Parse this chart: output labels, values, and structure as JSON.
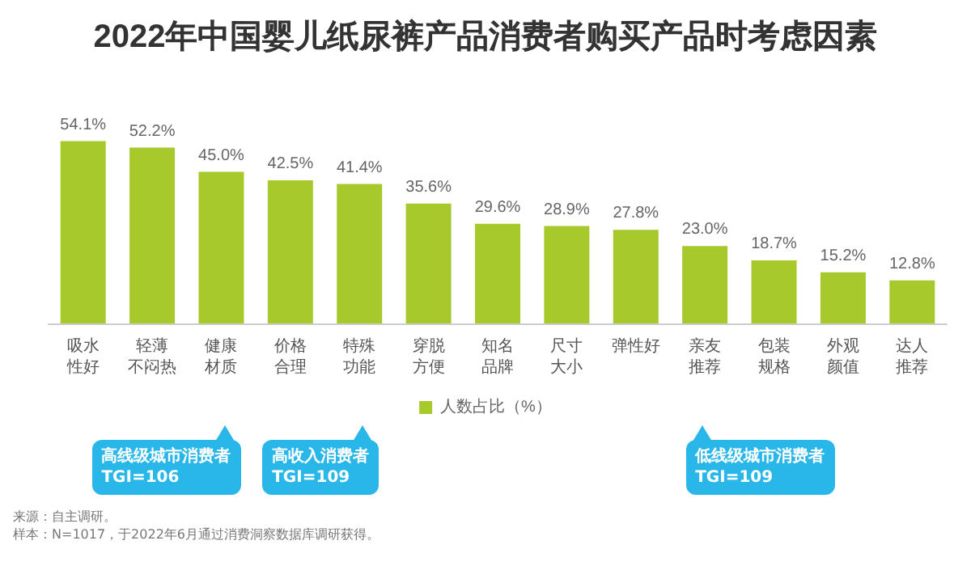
{
  "chart_data": {
    "type": "bar",
    "title": "2022年中国婴儿纸尿裤产品消费者购买产品时考虑因素",
    "categories": [
      "吸水性好",
      "轻薄不闷热",
      "健康材质",
      "价格合理",
      "特殊功能",
      "穿脱方便",
      "知名品牌",
      "尺寸大小",
      "弹性好",
      "亲友推荐",
      "包装规格",
      "外观颜值",
      "达人推荐"
    ],
    "series": [
      {
        "name": "人数占比（%）",
        "color": "#a7c92b",
        "values": [
          54.1,
          52.2,
          45.0,
          42.5,
          41.4,
          35.6,
          29.6,
          28.9,
          27.8,
          23.0,
          18.7,
          15.2,
          12.8
        ],
        "value_labels": [
          "54.1%",
          "52.2%",
          "45.0%",
          "42.5%",
          "41.4%",
          "35.6%",
          "29.6%",
          "28.9%",
          "27.8%",
          "23.0%",
          "18.7%",
          "15.2%",
          "12.8%"
        ]
      }
    ],
    "legend": "bottom",
    "annotations": [
      "高线级城市消费者\nTGI=106",
      "高收入消费者\nTGI=109",
      "低线级城市消费者\nTGI=109",
      "来源：自主调研。",
      "样本：N=1017，于2022年6月通过消费洞察数据库调研获得。"
    ]
  }
}
